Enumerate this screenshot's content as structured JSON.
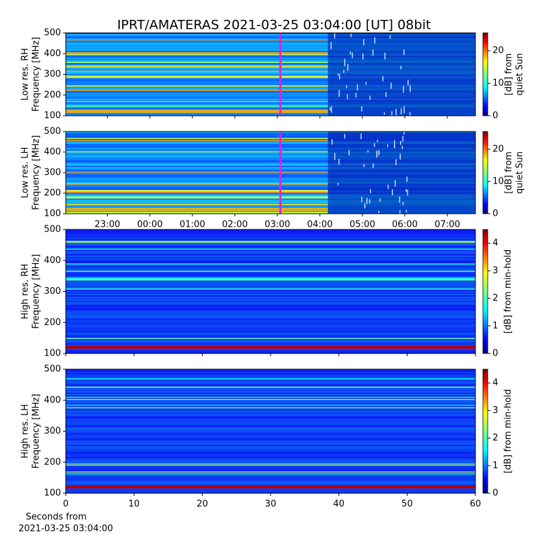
{
  "chart_data": [
    {
      "type": "heatmap",
      "title": "IPRT/AMATERAS 2021-03-25 03:04:00 [UT]   08bit",
      "ylabel": [
        "Low res. RH",
        "Frequency [MHz]"
      ],
      "xlim": [
        22.02,
        31.66
      ],
      "xticks": [
        23,
        24,
        25,
        26,
        27,
        28,
        29,
        30,
        31
      ],
      "ylim": [
        100,
        500
      ],
      "yticks": [
        100,
        200,
        300,
        400,
        500
      ],
      "marker_x": 27.07,
      "marker_color": "#e020e0",
      "clim": [
        0,
        25.5
      ],
      "cticks": [
        0,
        10,
        20
      ],
      "clabel": [
        "[dB] from",
        "quiet Sun"
      ]
    },
    {
      "type": "heatmap",
      "ylabel": [
        "Low res. LH",
        "Frequency [MHz]"
      ],
      "xlim": [
        22.02,
        31.66
      ],
      "xticks": [
        {
          "value": 23,
          "label": "23:00"
        },
        {
          "value": 24,
          "label": "00:00"
        },
        {
          "value": 25,
          "label": "01:00"
        },
        {
          "value": 26,
          "label": "02:00"
        },
        {
          "value": 27,
          "label": "03:00"
        },
        {
          "value": 28,
          "label": "04:00"
        },
        {
          "value": 29,
          "label": "05:00"
        },
        {
          "value": 30,
          "label": "06:00"
        },
        {
          "value": 31,
          "label": "07:00"
        }
      ],
      "ylim": [
        100,
        500
      ],
      "yticks": [
        100,
        200,
        300,
        400,
        500
      ],
      "marker_x": 27.07,
      "marker_color": "#e020e0",
      "clim": [
        0,
        25.5
      ],
      "cticks": [
        0,
        10,
        20
      ],
      "clabel": [
        "[dB] from",
        "quiet Sun"
      ]
    },
    {
      "type": "heatmap",
      "ylabel": [
        "High res. RH",
        "Frequency [MHz]"
      ],
      "xlim": [
        0,
        60
      ],
      "xticks": [
        0,
        10,
        20,
        30,
        40,
        50,
        60
      ],
      "ylim": [
        100,
        500
      ],
      "yticks": [
        100,
        200,
        300,
        400,
        500
      ],
      "clim": [
        0,
        4.5
      ],
      "cticks": [
        0,
        1,
        2,
        3,
        4
      ],
      "clabel": [
        "[dB] from min-hold"
      ]
    },
    {
      "type": "heatmap",
      "ylabel": [
        "High res. LH",
        "Frequency [MHz]"
      ],
      "xlim": [
        0,
        60
      ],
      "xticks": [
        0,
        10,
        20,
        30,
        40,
        50,
        60
      ],
      "show_xticklabels": true,
      "xlabel": [
        "Seconds from",
        "2021-03-25 03:04:00"
      ],
      "ylim": [
        100,
        500
      ],
      "yticks": [
        100,
        200,
        300,
        400,
        500
      ],
      "clim": [
        0,
        4.5
      ],
      "cticks": [
        0,
        1,
        2,
        3,
        4
      ],
      "clabel": [
        "[dB] from min-hold"
      ]
    }
  ]
}
